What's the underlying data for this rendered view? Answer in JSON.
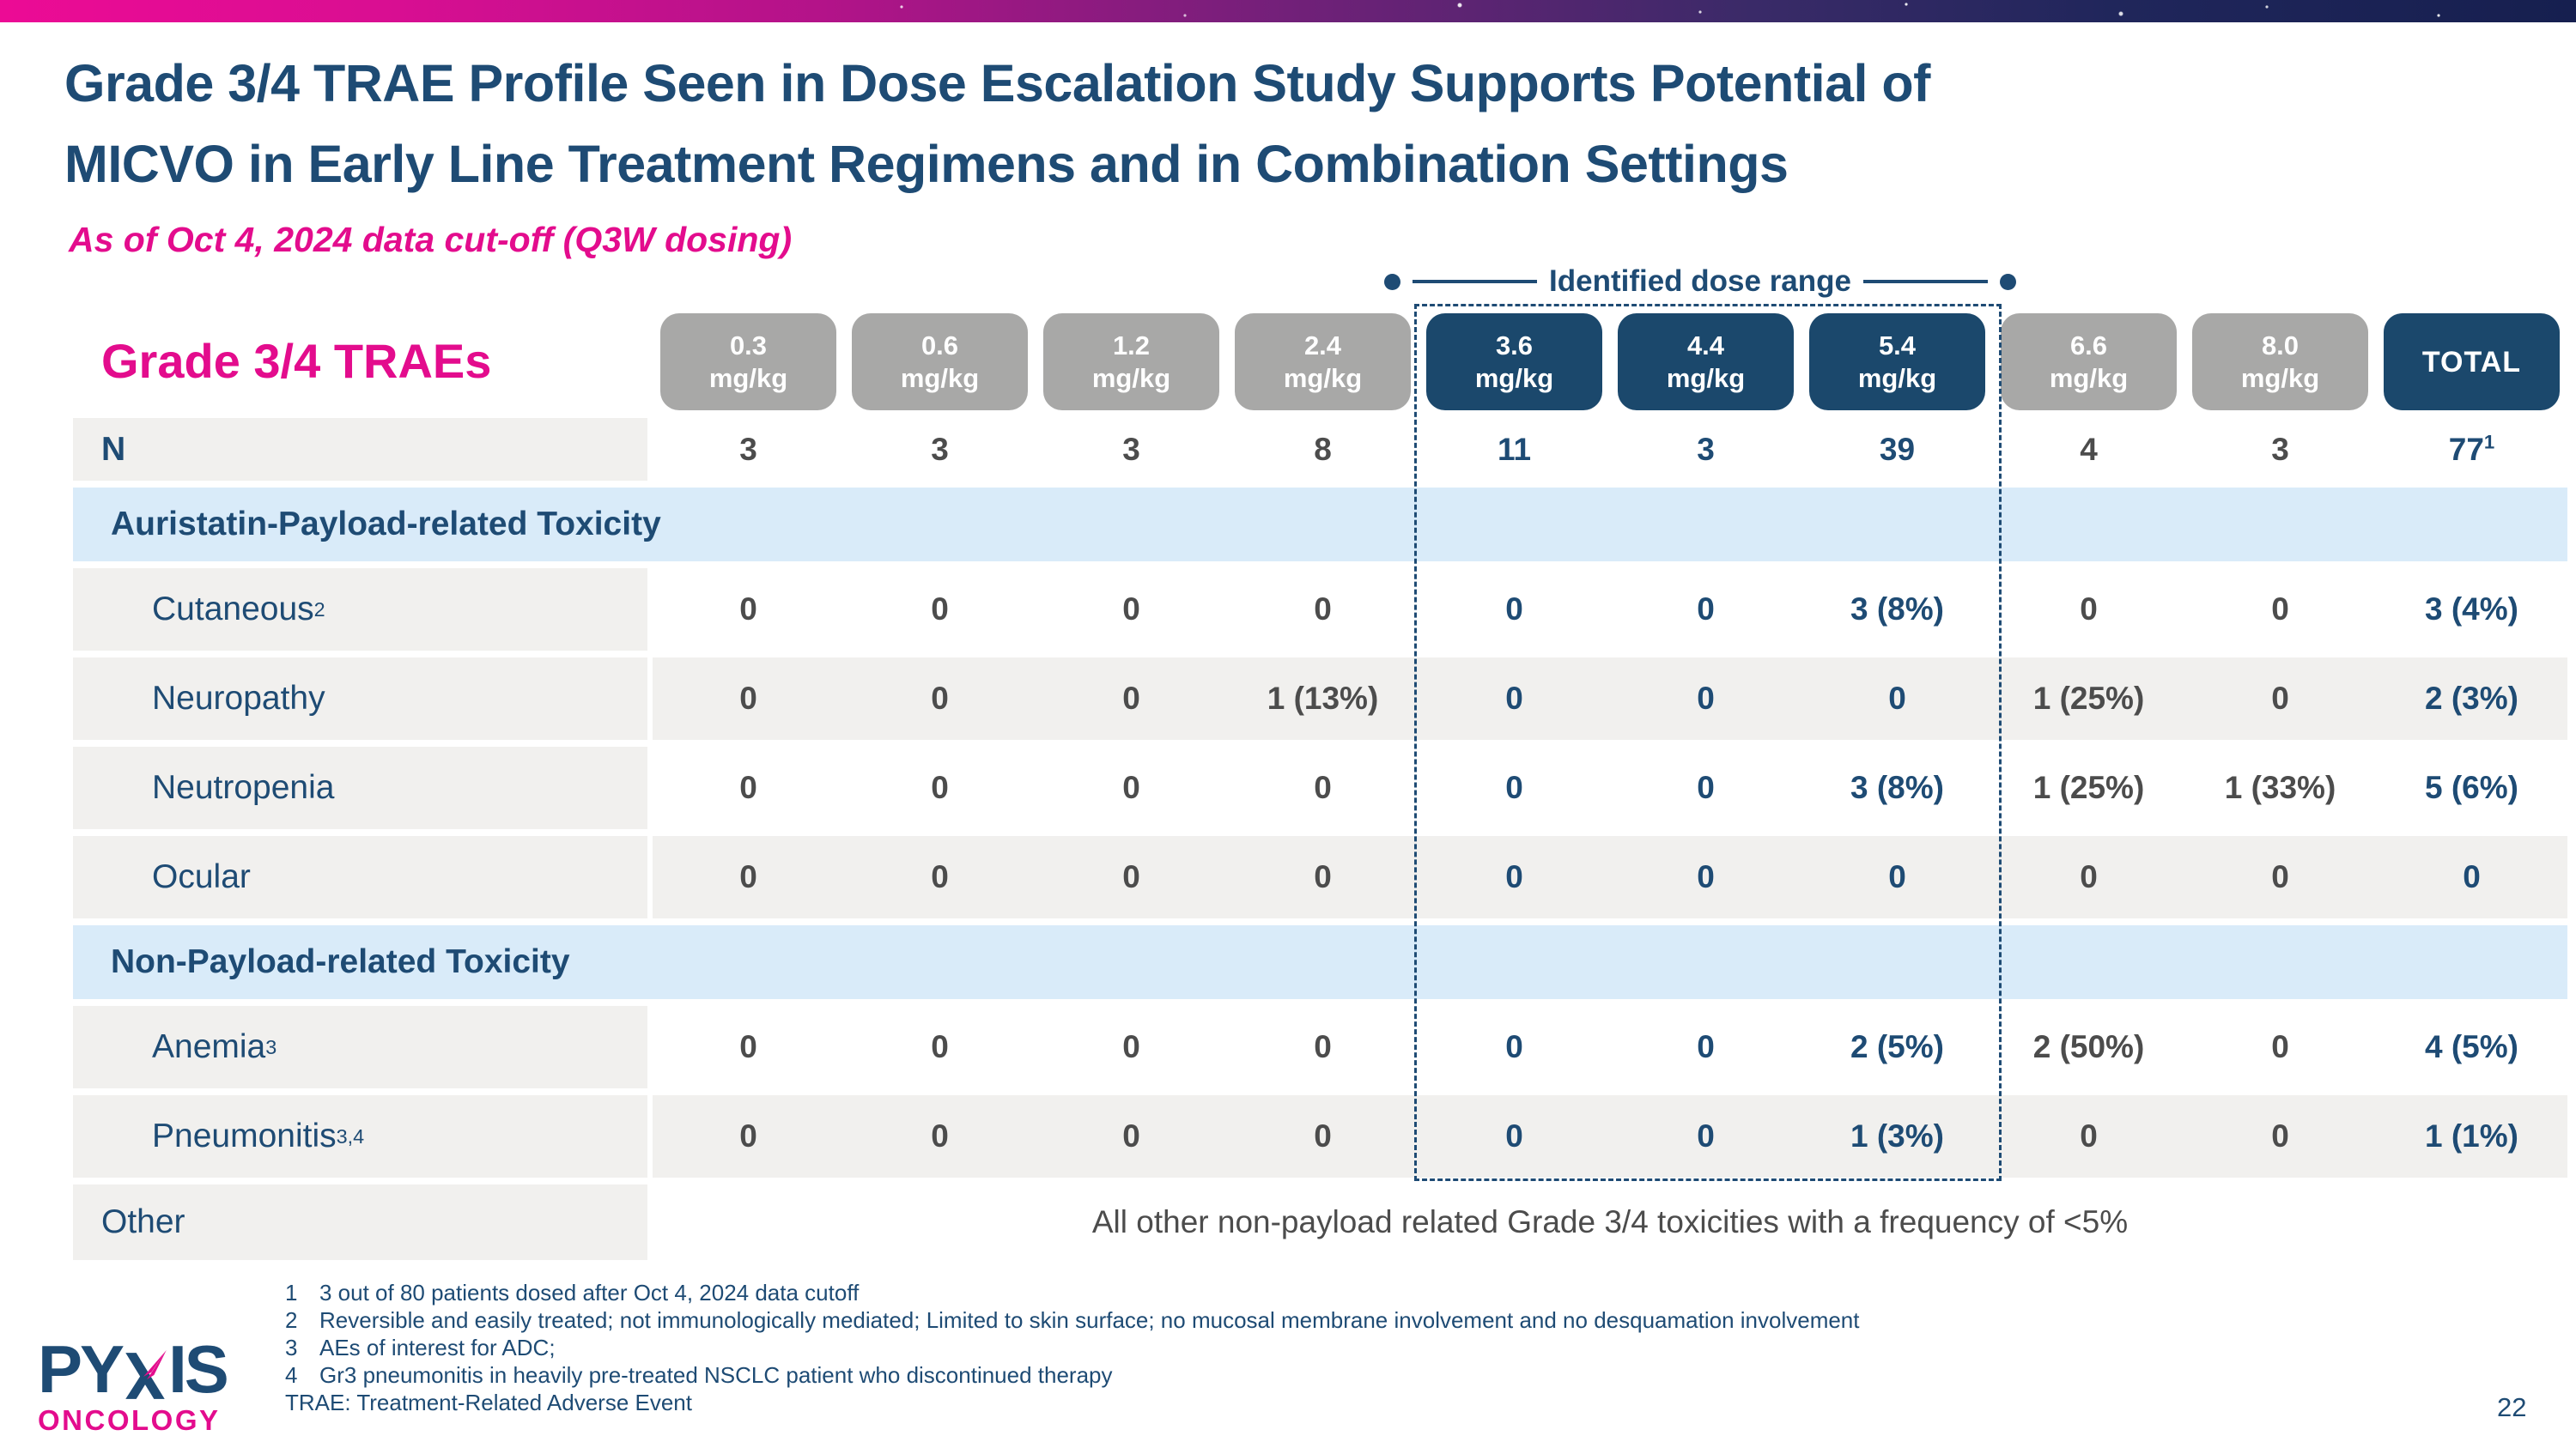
{
  "header": {
    "title_lines": [
      "Grade 3/4 TRAE Profile Seen in Dose Escalation Study Supports Potential of",
      "MICVO in Early Line Treatment Regimens and in Combination Settings"
    ],
    "subtitle": "As of Oct 4, 2024 data cut-off (Q3W dosing)"
  },
  "dose_range": {
    "label": "Identified dose range",
    "columns": [
      "3.6 mg/kg",
      "4.4 mg/kg",
      "5.4 mg/kg"
    ]
  },
  "table": {
    "title": "Grade 3/4 TRAEs",
    "columns": [
      {
        "dose": "0.3",
        "unit": "mg/kg",
        "group": "gray"
      },
      {
        "dose": "0.6",
        "unit": "mg/kg",
        "group": "gray"
      },
      {
        "dose": "1.2",
        "unit": "mg/kg",
        "group": "gray"
      },
      {
        "dose": "2.4",
        "unit": "mg/kg",
        "group": "gray"
      },
      {
        "dose": "3.6",
        "unit": "mg/kg",
        "group": "navy"
      },
      {
        "dose": "4.4",
        "unit": "mg/kg",
        "group": "navy"
      },
      {
        "dose": "5.4",
        "unit": "mg/kg",
        "group": "navy"
      },
      {
        "dose": "6.6",
        "unit": "mg/kg",
        "group": "gray"
      },
      {
        "dose": "8.0",
        "unit": "mg/kg",
        "group": "gray"
      },
      {
        "dose": "TOTAL",
        "unit": "",
        "group": "navy"
      }
    ],
    "rows": [
      {
        "type": "n",
        "label": "N",
        "values": [
          "3",
          "3",
          "3",
          "8",
          "11",
          "3",
          "39",
          "4",
          "3",
          "77"
        ],
        "value_sups": {
          "9": "1"
        }
      },
      {
        "type": "section",
        "label": "Auristatin-Payload-related Toxicity"
      },
      {
        "type": "data",
        "label": "Cutaneous",
        "sup": "2",
        "shade": false,
        "values": [
          "0",
          "0",
          "0",
          "0",
          "0",
          "0",
          "3 (8%)",
          "0",
          "0",
          "3 (4%)"
        ]
      },
      {
        "type": "data",
        "label": "Neuropathy",
        "sup": "",
        "shade": true,
        "values": [
          "0",
          "0",
          "0",
          "1 (13%)",
          "0",
          "0",
          "0",
          "1 (25%)",
          "0",
          "2 (3%)"
        ]
      },
      {
        "type": "data",
        "label": "Neutropenia",
        "sup": "",
        "shade": false,
        "values": [
          "0",
          "0",
          "0",
          "0",
          "0",
          "0",
          "3 (8%)",
          "1 (25%)",
          "1 (33%)",
          "5 (6%)"
        ]
      },
      {
        "type": "data",
        "label": "Ocular",
        "sup": "",
        "shade": true,
        "values": [
          "0",
          "0",
          "0",
          "0",
          "0",
          "0",
          "0",
          "0",
          "0",
          "0"
        ]
      },
      {
        "type": "section",
        "label": "Non-Payload-related Toxicity"
      },
      {
        "type": "data",
        "label": "Anemia",
        "sup": "3",
        "shade": false,
        "values": [
          "0",
          "0",
          "0",
          "0",
          "0",
          "0",
          "2 (5%)",
          "2 (50%)",
          "0",
          "4 (5%)"
        ]
      },
      {
        "type": "data",
        "label": "Pneumonitis",
        "sup": "3,4",
        "shade": true,
        "values": [
          "0",
          "0",
          "0",
          "0",
          "0",
          "0",
          "1 (3%)",
          "0",
          "0",
          "1 (1%)"
        ]
      },
      {
        "type": "other",
        "label": "Other",
        "note": "All other non-payload related Grade 3/4 toxicities with a frequency of <5%"
      }
    ]
  },
  "footnotes": [
    {
      "num": "1",
      "text": "3 out of 80 patients dosed after Oct 4, 2024 data cutoff"
    },
    {
      "num": "2",
      "text": "Reversible and easily treated; not immunologically mediated; Limited to skin surface; no mucosal membrane involvement and no desquamation involvement"
    },
    {
      "num": "3",
      "text": "AEs of interest for ADC;"
    },
    {
      "num": "4",
      "text": "Gr3 pneumonitis in heavily pre-treated NSCLC patient who discontinued therapy"
    }
  ],
  "abbreviation": "TRAE: Treatment-Related Adverse Event",
  "logo": {
    "name_prefix": "PY",
    "name_suffix": "IS",
    "full_name": "PYXIS",
    "division": "ONCOLOGY"
  },
  "page_number": "22",
  "colors": {
    "navy": "#1e4b74",
    "magenta": "#e30c8d",
    "pill_navy": "#1b486c",
    "pill_gray": "#a8a8a7",
    "row_gray": "#f1f0ee",
    "section_blue": "#d9ebf9",
    "value_gray_text": "#4c4c4c"
  }
}
